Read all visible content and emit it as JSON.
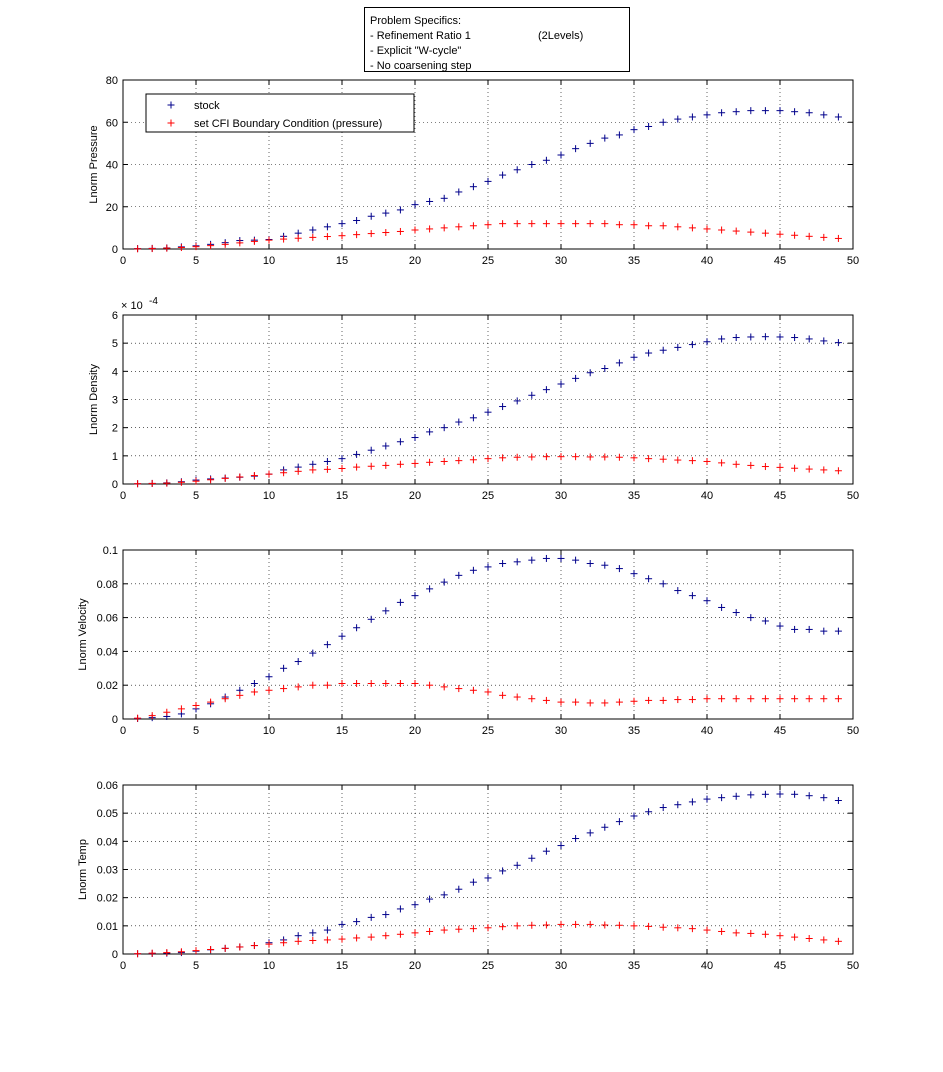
{
  "annotation": {
    "title": "Problem Specifics:",
    "lines": [
      "- Refinement Ratio 1",
      "- Explicit \"W-cycle\"",
      "- No coarsening step"
    ],
    "levels": "(2Levels)"
  },
  "colors": {
    "stock": "#00008b",
    "cfi": "#ff0000",
    "grid": "#000000"
  },
  "chart_data": [
    {
      "type": "scatter",
      "marker": "+",
      "ylabel": "Lnorm Pressure",
      "xlim": [
        0,
        50
      ],
      "ylim": [
        0,
        80
      ],
      "xticks": [
        "0",
        "5",
        "10",
        "15",
        "20",
        "25",
        "30",
        "35",
        "40",
        "45",
        "50"
      ],
      "yticks": [
        "0",
        "20",
        "40",
        "60",
        "80"
      ],
      "ytick_values": [
        0,
        20,
        40,
        60,
        80
      ],
      "grid": true,
      "legend": {
        "placement": "top-left",
        "entries": [
          "stock",
          "set CFI Boundary Condition (pressure)"
        ]
      },
      "x": [
        1,
        2,
        3,
        4,
        5,
        6,
        7,
        8,
        9,
        10,
        11,
        12,
        13,
        14,
        15,
        16,
        17,
        18,
        19,
        20,
        21,
        22,
        23,
        24,
        25,
        26,
        27,
        28,
        29,
        30,
        31,
        32,
        33,
        34,
        35,
        36,
        37,
        38,
        39,
        40,
        41,
        42,
        43,
        44,
        45,
        46,
        47,
        48,
        49
      ],
      "series": [
        {
          "name": "stock",
          "values": [
            0.2,
            0.3,
            0.5,
            1.0,
            1.5,
            2.2,
            3.0,
            4.0,
            4.2,
            4.5,
            6.0,
            7.5,
            9.0,
            10.5,
            12.0,
            13.5,
            15.5,
            17.0,
            18.5,
            21.0,
            22.5,
            24.0,
            27.0,
            29.5,
            32.0,
            35.0,
            37.5,
            40.0,
            42.0,
            44.5,
            47.5,
            50.0,
            52.5,
            54.0,
            56.5,
            58.0,
            60.0,
            61.5,
            62.5,
            63.5,
            64.5,
            65.0,
            65.5,
            65.5,
            65.5,
            65.0,
            64.5,
            63.5,
            62.5
          ]
        },
        {
          "name": "set CFI Boundary Condition (pressure)",
          "values": [
            0.1,
            0.2,
            0.4,
            0.7,
            1.1,
            1.6,
            2.2,
            2.9,
            3.6,
            4.2,
            4.7,
            5.1,
            5.5,
            5.9,
            6.3,
            6.8,
            7.3,
            7.8,
            8.3,
            9.0,
            9.5,
            10.0,
            10.5,
            11.0,
            11.5,
            12.0,
            12.0,
            12.0,
            12.0,
            12.0,
            12.0,
            12.0,
            12.0,
            11.5,
            11.5,
            11.0,
            11.0,
            10.5,
            10.0,
            9.5,
            9.0,
            8.5,
            8.0,
            7.5,
            7.0,
            6.5,
            6.0,
            5.5,
            5.0
          ]
        }
      ]
    },
    {
      "type": "scatter",
      "marker": "+",
      "ylabel": "Lnorm Density",
      "xlim": [
        0,
        50
      ],
      "ylim": [
        0,
        0.0006
      ],
      "xticks": [
        "0",
        "5",
        "10",
        "15",
        "20",
        "25",
        "30",
        "35",
        "40",
        "45",
        "50"
      ],
      "yticks": [
        "0",
        "1",
        "2",
        "3",
        "4",
        "5",
        "6"
      ],
      "ytick_values": [
        0,
        0.0001,
        0.0002,
        0.0003,
        0.0004,
        0.0005,
        0.0006
      ],
      "y_multiplier_base": "× 10",
      "y_multiplier_exp": "-4",
      "grid": true,
      "x": [
        1,
        2,
        3,
        4,
        5,
        6,
        7,
        8,
        9,
        10,
        11,
        12,
        13,
        14,
        15,
        16,
        17,
        18,
        19,
        20,
        21,
        22,
        23,
        24,
        25,
        26,
        27,
        28,
        29,
        30,
        31,
        32,
        33,
        34,
        35,
        36,
        37,
        38,
        39,
        40,
        41,
        42,
        43,
        44,
        45,
        46,
        47,
        48,
        49
      ],
      "series": [
        {
          "name": "stock",
          "values": [
            1e-06,
            2e-06,
            4e-06,
            8e-06,
            1.4e-05,
            1.8e-05,
            2.1e-05,
            2.4e-05,
            2.8e-05,
            3.5e-05,
            5e-05,
            6e-05,
            7e-05,
            8e-05,
            9e-05,
            0.000105,
            0.00012,
            0.000135,
            0.00015,
            0.000165,
            0.000185,
            0.0002,
            0.00022,
            0.000235,
            0.000255,
            0.000275,
            0.000295,
            0.000315,
            0.000335,
            0.000355,
            0.000375,
            0.000395,
            0.00041,
            0.00043,
            0.00045,
            0.000465,
            0.000475,
            0.000485,
            0.000495,
            0.000505,
            0.000515,
            0.00052,
            0.000522,
            0.000523,
            0.000522,
            0.00052,
            0.000515,
            0.000508,
            0.000502
          ]
        },
        {
          "name": "set CFI Boundary Condition (pressure)",
          "values": [
            1e-06,
            2e-06,
            3e-06,
            6e-06,
            1e-05,
            1.5e-05,
            2e-05,
            2.5e-05,
            3e-05,
            3.5e-05,
            4e-05,
            4.5e-05,
            5e-05,
            5.2e-05,
            5.5e-05,
            6e-05,
            6.3e-05,
            6.6e-05,
            7e-05,
            7.3e-05,
            7.7e-05,
            8e-05,
            8.3e-05,
            8.6e-05,
            9e-05,
            9.3e-05,
            9.5e-05,
            9.6e-05,
            9.7e-05,
            9.7e-05,
            9.7e-05,
            9.6e-05,
            9.6e-05,
            9.5e-05,
            9.3e-05,
            9e-05,
            8.8e-05,
            8.5e-05,
            8.3e-05,
            8e-05,
            7.5e-05,
            7e-05,
            6.6e-05,
            6.2e-05,
            5.9e-05,
            5.6e-05,
            5.3e-05,
            5e-05,
            4.7e-05
          ]
        }
      ]
    },
    {
      "type": "scatter",
      "marker": "+",
      "ylabel": "Lnorm Velocity",
      "xlim": [
        0,
        50
      ],
      "ylim": [
        0,
        0.1
      ],
      "xticks": [
        "0",
        "5",
        "10",
        "15",
        "20",
        "25",
        "30",
        "35",
        "40",
        "45",
        "50"
      ],
      "yticks": [
        "0",
        "0.02",
        "0.04",
        "0.06",
        "0.08",
        "0.1"
      ],
      "ytick_values": [
        0,
        0.02,
        0.04,
        0.06,
        0.08,
        0.1
      ],
      "grid": true,
      "x": [
        1,
        2,
        3,
        4,
        5,
        6,
        7,
        8,
        9,
        10,
        11,
        12,
        13,
        14,
        15,
        16,
        17,
        18,
        19,
        20,
        21,
        22,
        23,
        24,
        25,
        26,
        27,
        28,
        29,
        30,
        31,
        32,
        33,
        34,
        35,
        36,
        37,
        38,
        39,
        40,
        41,
        42,
        43,
        44,
        45,
        46,
        47,
        48,
        49
      ],
      "series": [
        {
          "name": "stock",
          "values": [
            0.0003,
            0.0008,
            0.0015,
            0.003,
            0.006,
            0.009,
            0.013,
            0.017,
            0.021,
            0.025,
            0.03,
            0.034,
            0.039,
            0.044,
            0.049,
            0.054,
            0.059,
            0.064,
            0.069,
            0.073,
            0.077,
            0.081,
            0.085,
            0.088,
            0.09,
            0.092,
            0.093,
            0.094,
            0.095,
            0.095,
            0.094,
            0.092,
            0.091,
            0.089,
            0.086,
            0.083,
            0.08,
            0.076,
            0.073,
            0.07,
            0.066,
            0.063,
            0.06,
            0.058,
            0.055,
            0.053,
            0.053,
            0.052,
            0.052
          ]
        },
        {
          "name": "set CFI Boundary Condition (pressure)",
          "values": [
            0.0005,
            0.002,
            0.004,
            0.006,
            0.008,
            0.01,
            0.012,
            0.014,
            0.016,
            0.017,
            0.018,
            0.019,
            0.02,
            0.02,
            0.021,
            0.021,
            0.021,
            0.021,
            0.021,
            0.021,
            0.02,
            0.019,
            0.018,
            0.017,
            0.016,
            0.014,
            0.013,
            0.012,
            0.011,
            0.01,
            0.01,
            0.0095,
            0.0095,
            0.01,
            0.0105,
            0.011,
            0.011,
            0.0115,
            0.0115,
            0.012,
            0.012,
            0.012,
            0.012,
            0.012,
            0.012,
            0.012,
            0.012,
            0.012,
            0.012
          ]
        }
      ]
    },
    {
      "type": "scatter",
      "marker": "+",
      "ylabel": "Lnorm Temp",
      "xlim": [
        0,
        50
      ],
      "ylim": [
        0,
        0.06
      ],
      "xticks": [
        "0",
        "5",
        "10",
        "15",
        "20",
        "25",
        "30",
        "35",
        "40",
        "45",
        "50"
      ],
      "yticks": [
        "0",
        "0.01",
        "0.02",
        "0.03",
        "0.04",
        "0.05",
        "0.06"
      ],
      "ytick_values": [
        0,
        0.01,
        0.02,
        0.03,
        0.04,
        0.05,
        0.06
      ],
      "grid": true,
      "x": [
        1,
        2,
        3,
        4,
        5,
        6,
        7,
        8,
        9,
        10,
        11,
        12,
        13,
        14,
        15,
        16,
        17,
        18,
        19,
        20,
        21,
        22,
        23,
        24,
        25,
        26,
        27,
        28,
        29,
        30,
        31,
        32,
        33,
        34,
        35,
        36,
        37,
        38,
        39,
        40,
        41,
        42,
        43,
        44,
        45,
        46,
        47,
        48,
        49
      ],
      "series": [
        {
          "name": "stock",
          "values": [
            0.0001,
            0.0002,
            0.0003,
            0.0005,
            0.001,
            0.0015,
            0.002,
            0.0025,
            0.003,
            0.004,
            0.005,
            0.0065,
            0.0075,
            0.0085,
            0.0105,
            0.0115,
            0.013,
            0.014,
            0.016,
            0.0175,
            0.0195,
            0.021,
            0.023,
            0.0255,
            0.027,
            0.0295,
            0.0315,
            0.034,
            0.0365,
            0.0385,
            0.041,
            0.043,
            0.045,
            0.047,
            0.049,
            0.0505,
            0.052,
            0.053,
            0.054,
            0.055,
            0.0555,
            0.056,
            0.0565,
            0.0567,
            0.0568,
            0.0567,
            0.0562,
            0.0555,
            0.0545
          ]
        },
        {
          "name": "set CFI Boundary Condition (pressure)",
          "values": [
            0.0001,
            0.0003,
            0.0005,
            0.0008,
            0.0012,
            0.0016,
            0.002,
            0.0025,
            0.003,
            0.0035,
            0.004,
            0.0045,
            0.0048,
            0.005,
            0.0053,
            0.0057,
            0.006,
            0.0065,
            0.007,
            0.0075,
            0.008,
            0.0085,
            0.0088,
            0.009,
            0.0093,
            0.0097,
            0.01,
            0.0102,
            0.0103,
            0.0105,
            0.0105,
            0.0105,
            0.0103,
            0.0102,
            0.01,
            0.0098,
            0.0095,
            0.0093,
            0.009,
            0.0085,
            0.008,
            0.0075,
            0.0073,
            0.007,
            0.0065,
            0.006,
            0.0055,
            0.005,
            0.0045
          ]
        }
      ]
    }
  ]
}
